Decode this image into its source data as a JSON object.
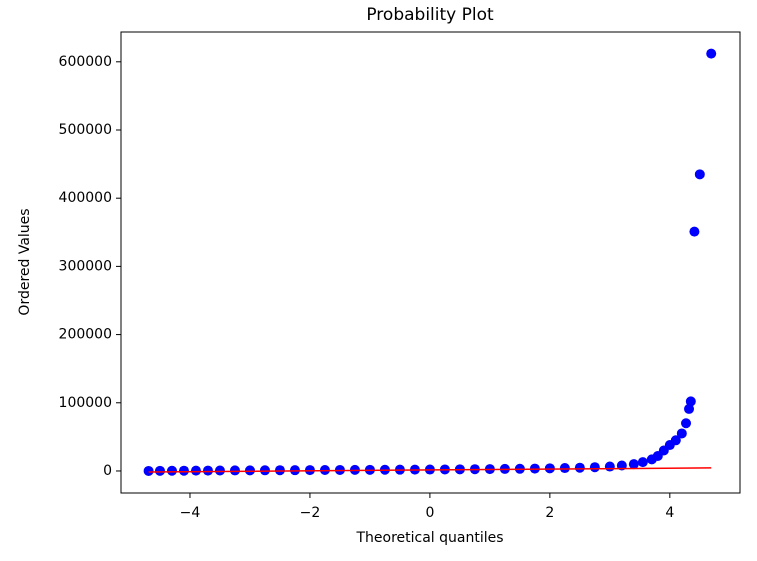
{
  "chart_data": {
    "type": "scatter",
    "title": "Probability Plot",
    "x_label": "Theoretical quantiles",
    "y_label": "Ordered Values",
    "x": [
      -4.69,
      -4.5,
      -4.3,
      -4.1,
      -3.9,
      -3.7,
      -3.5,
      -3.25,
      -3,
      -2.75,
      -2.5,
      -2.25,
      -2,
      -1.75,
      -1.5,
      -1.25,
      -1,
      -0.75,
      -0.5,
      -0.25,
      0,
      0.25,
      0.5,
      0.75,
      1,
      1.25,
      1.5,
      1.75,
      2,
      2.25,
      2.5,
      2.75,
      3,
      3.2,
      3.4,
      3.55,
      3.7,
      3.8,
      3.9,
      4.0,
      4.1,
      4.2,
      4.27,
      4.32,
      4.35,
      4.41,
      4.5,
      4.69
    ],
    "values": [
      0,
      200,
      300,
      400,
      500,
      600,
      700,
      800,
      900,
      1000,
      1100,
      1200,
      1300,
      1400,
      1500,
      1600,
      1700,
      1800,
      1900,
      2000,
      2100,
      2200,
      2400,
      2600,
      2800,
      3000,
      3200,
      3500,
      3900,
      4300,
      4800,
      5500,
      6500,
      8000,
      10000,
      13000,
      17000,
      22000,
      30000,
      38000,
      45000,
      55000,
      70000,
      91000,
      102000,
      351000,
      435000,
      612000
    ],
    "color": "#0000ff",
    "fit": {
      "x": [
        -4.69,
        4.69
      ],
      "values": [
        -1500,
        4500
      ],
      "color": "#ff0000"
    },
    "xlim": [
      -5.15,
      5.17
    ],
    "xticks": [
      {
        "value": -4,
        "label": "−4"
      },
      {
        "value": -2,
        "label": "−2"
      },
      0,
      2,
      4
    ],
    "ylim": [
      -32300,
      643700
    ],
    "yticks": [
      0,
      100000,
      200000,
      300000,
      400000,
      500000,
      600000
    ]
  }
}
